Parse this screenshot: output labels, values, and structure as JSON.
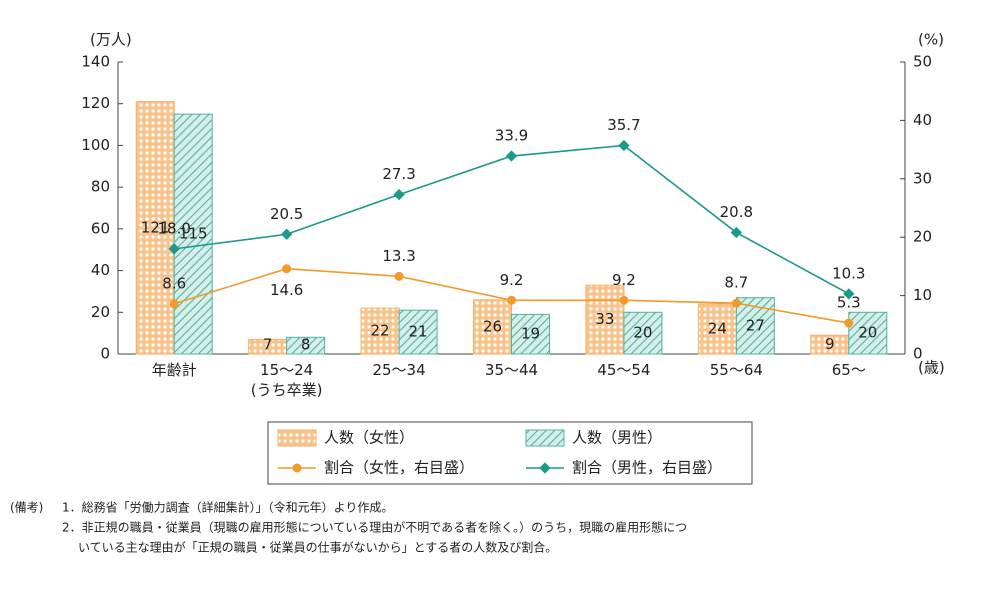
{
  "chart_data": {
    "type": "bar-line",
    "y_label": "(万人)",
    "y2_label": "(%)",
    "x_label": "(歳)",
    "categories": [
      "年齢計",
      "15～24\n(うち卒業)",
      "25～34",
      "35～44",
      "45～54",
      "55～64",
      "65～"
    ],
    "ylim": [
      0,
      140
    ],
    "yticks": [
      0,
      20,
      40,
      60,
      80,
      100,
      120,
      140
    ],
    "y2lim": [
      0,
      50
    ],
    "y2ticks": [
      0,
      10,
      20,
      30,
      40,
      50
    ],
    "series": [
      {
        "name": "人数（女性）",
        "kind": "bar",
        "color": "#f7b06a",
        "values": [
          121,
          7,
          22,
          26,
          33,
          24,
          9
        ]
      },
      {
        "name": "人数（男性）",
        "kind": "bar",
        "color": "#4fb3a3",
        "values": [
          115,
          8,
          21,
          19,
          20,
          27,
          20
        ]
      },
      {
        "name": "割合（女性，右目盛）",
        "kind": "line",
        "axis": "y2",
        "color": "#f39a2b",
        "values": [
          8.6,
          14.6,
          13.3,
          9.2,
          9.2,
          8.7,
          5.3
        ]
      },
      {
        "name": "割合（男性，右目盛）",
        "kind": "line",
        "axis": "y2",
        "color": "#1a9a8a",
        "values": [
          18.0,
          20.5,
          27.3,
          33.9,
          35.7,
          20.8,
          10.3
        ],
        "value_labels": [
          "18.0",
          "20.5",
          "27.3",
          "33.9",
          "35.7",
          "20.8",
          "10.3"
        ]
      }
    ],
    "notes_label": "(備考)",
    "notes": [
      "1．総務省「労働力調査（詳細集計）」（令和元年）より作成。",
      "2．非正規の職員・従業員（現職の雇用形態についている理由が不明である者を除く。）のうち，現職の雇用形態につ",
      "いている主な理由が「正規の職員・従業員の仕事がないから」とする者の人数及び割合。"
    ]
  }
}
